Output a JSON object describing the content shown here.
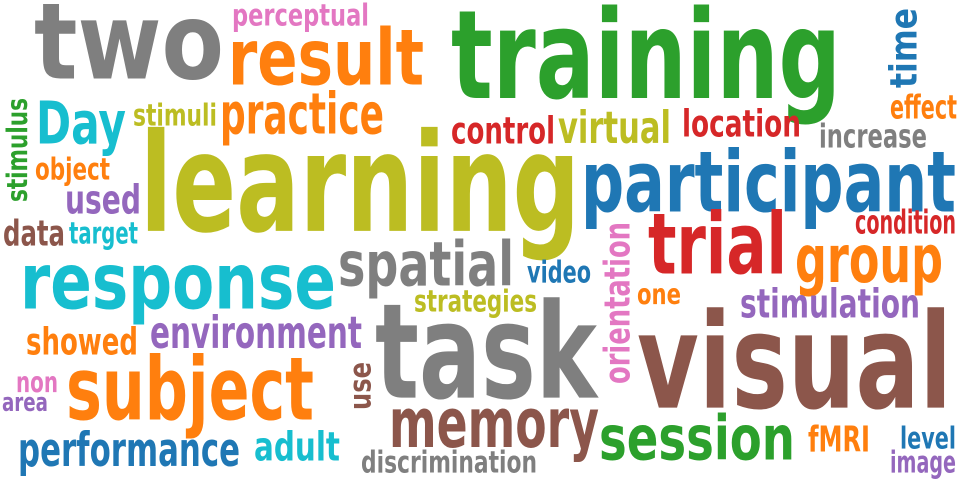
{
  "colors": {
    "gray": "#7f7f7f",
    "orange": "#ff7f0e",
    "green": "#2ca02c",
    "olive": "#bcbd22",
    "blue": "#1f77b4",
    "cyan": "#17becf",
    "red": "#d62728",
    "brown": "#8c564b",
    "purple": "#9467bd",
    "pink": "#e377c2"
  },
  "words": {
    "two": "two",
    "perceptual": "perceptual",
    "result": "result",
    "training": "training",
    "time": "time",
    "stimulus": "stimulus",
    "day": "Day",
    "stimuli": "stimuli",
    "practice": "practice",
    "effect": "effect",
    "control": "control",
    "virtual": "virtual",
    "location": "location",
    "increase": "increase",
    "object": "object",
    "learning": "learning",
    "participant": "participant",
    "used": "used",
    "condition": "condition",
    "data": "data",
    "target": "target",
    "trial": "trial",
    "orientation": "orientation",
    "spatial": "spatial",
    "group": "group",
    "response": "response",
    "video": "video",
    "one": "one",
    "strategies": "strategies",
    "stimulation": "stimulation",
    "environment": "environment",
    "showed": "showed",
    "task": "task",
    "visual": "visual",
    "use": "use",
    "non": "non",
    "subject": "subject",
    "area": "area",
    "memory": "memory",
    "session": "session",
    "level": "level",
    "fmri": "fMRI",
    "performance": "performance",
    "adult": "adult",
    "image": "image",
    "discrimination": "discrimination"
  }
}
